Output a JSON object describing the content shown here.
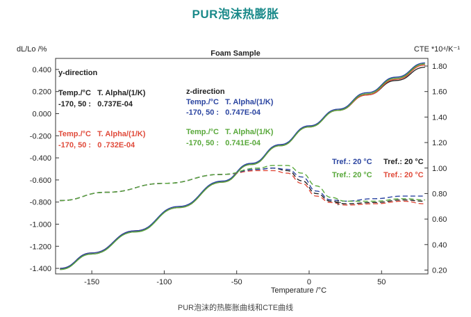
{
  "page": {
    "title": "PUR泡沫热膨胀",
    "caption": "PUR泡沫的热膨胀曲线和CTE曲线"
  },
  "colors": {
    "title": "#1a8a8a",
    "black": "#222222",
    "blue": "#2a44a0",
    "red": "#e04a3a",
    "green": "#58a83a"
  },
  "chart_data": {
    "type": "line",
    "title": "Foam Sample",
    "xlabel": "Temperature /°C",
    "ylabel": "dL/Lo /%",
    "y2label": "CTE *10⁴/K⁻¹",
    "xlim": [
      -175,
      82
    ],
    "ylim": [
      -1.45,
      0.5
    ],
    "y2lim": [
      0.17,
      1.86
    ],
    "xticks": [
      "-150",
      "-100",
      "-50",
      "0",
      "50"
    ],
    "xtick_values": [
      -150,
      -100,
      -50,
      0,
      50
    ],
    "yticks": [
      "0.400",
      "0.200",
      "0.000",
      "-0.200",
      "-0.400",
      "-0.600",
      "-0.800",
      "-1.000",
      "-1.200",
      "-1.400"
    ],
    "ytick_values": [
      0.4,
      0.2,
      0.0,
      -0.2,
      -0.4,
      -0.6,
      -0.8,
      -1.0,
      -1.2,
      -1.4
    ],
    "y2ticks": [
      "1.80",
      "1.60",
      "1.40",
      "1.20",
      "1.00",
      "0.80",
      "0.60",
      "0.40",
      "0.20"
    ],
    "y2tick_values": [
      1.8,
      1.6,
      1.4,
      1.2,
      1.0,
      0.8,
      0.6,
      0.4,
      0.2
    ],
    "grid": false,
    "series": [
      {
        "color": "black",
        "axis": "left",
        "style": "solid",
        "x": [
          -172,
          -150,
          -120,
          -90,
          -60,
          -40,
          -20,
          0,
          20,
          40,
          60,
          80
        ],
        "y": [
          -1.41,
          -1.27,
          -1.07,
          -0.85,
          -0.62,
          -0.46,
          -0.29,
          -0.12,
          0.03,
          0.17,
          0.3,
          0.42
        ]
      },
      {
        "color": "red",
        "axis": "left",
        "style": "solid",
        "x": [
          -172,
          -150,
          -120,
          -90,
          -60,
          -40,
          -20,
          0,
          20,
          40,
          60,
          80
        ],
        "y": [
          -1.4,
          -1.26,
          -1.06,
          -0.85,
          -0.62,
          -0.46,
          -0.29,
          -0.12,
          0.03,
          0.17,
          0.31,
          0.44
        ]
      },
      {
        "color": "blue",
        "axis": "left",
        "style": "solid",
        "x": [
          -172,
          -150,
          -120,
          -90,
          -60,
          -40,
          -20,
          0,
          20,
          40,
          60,
          80
        ],
        "y": [
          -1.4,
          -1.26,
          -1.06,
          -0.84,
          -0.61,
          -0.45,
          -0.28,
          -0.11,
          0.04,
          0.19,
          0.33,
          0.46
        ]
      },
      {
        "color": "green",
        "axis": "left",
        "style": "solid",
        "x": [
          -172,
          -150,
          -120,
          -90,
          -60,
          -40,
          -20,
          0,
          20,
          40,
          60,
          80
        ],
        "y": [
          -1.41,
          -1.27,
          -1.07,
          -0.85,
          -0.62,
          -0.46,
          -0.29,
          -0.12,
          0.03,
          0.18,
          0.32,
          0.45
        ]
      },
      {
        "color": "black",
        "axis": "right",
        "style": "dashed",
        "x": [
          -172,
          -140,
          -100,
          -60,
          -35,
          -25,
          -15,
          -5,
          5,
          15,
          25,
          45,
          65,
          80
        ],
        "y": [
          0.745,
          0.81,
          0.88,
          0.95,
          0.99,
          1.0,
          0.98,
          0.9,
          0.8,
          0.74,
          0.72,
          0.73,
          0.75,
          0.74
        ]
      },
      {
        "color": "red",
        "axis": "right",
        "style": "dashed",
        "x": [
          -172,
          -140,
          -100,
          -60,
          -35,
          -25,
          -15,
          -5,
          5,
          15,
          25,
          45,
          65,
          80
        ],
        "y": [
          0.745,
          0.81,
          0.88,
          0.95,
          0.98,
          0.98,
          0.96,
          0.88,
          0.78,
          0.73,
          0.71,
          0.72,
          0.74,
          0.72
        ]
      },
      {
        "color": "blue",
        "axis": "right",
        "style": "dashed",
        "x": [
          -172,
          -140,
          -100,
          -60,
          -35,
          -25,
          -15,
          -5,
          5,
          15,
          25,
          45,
          65,
          80
        ],
        "y": [
          0.745,
          0.81,
          0.88,
          0.95,
          0.99,
          1.0,
          0.99,
          0.93,
          0.82,
          0.75,
          0.74,
          0.76,
          0.78,
          0.78
        ]
      },
      {
        "color": "green",
        "axis": "right",
        "style": "dashed",
        "x": [
          -172,
          -140,
          -100,
          -60,
          -35,
          -25,
          -15,
          -5,
          5,
          15,
          25,
          45,
          65,
          80
        ],
        "y": [
          0.745,
          0.81,
          0.88,
          0.95,
          1.0,
          1.02,
          1.02,
          0.96,
          0.86,
          0.77,
          0.74,
          0.74,
          0.76,
          0.75
        ]
      }
    ],
    "annotations": [
      {
        "text": "y-direction",
        "color": "black"
      },
      {
        "text": "Temp./°C   T. Alpha/(1/K)",
        "color": "black"
      },
      {
        "text": "-170, 50 :   0.737E-04",
        "color": "black"
      },
      {
        "text": "Temp./°C   T. Alpha/(1/K)",
        "color": "red"
      },
      {
        "text": "-170, 50 :   0 .732E-04",
        "color": "red"
      },
      {
        "text": "z-direction",
        "color": "black"
      },
      {
        "text": "Temp./°C   T. Alpha/(1/K)",
        "color": "blue"
      },
      {
        "text": "-170, 50 :   0.747E-04",
        "color": "blue"
      },
      {
        "text": "Temp./°C   T. Alpha/(1/K)",
        "color": "green"
      },
      {
        "text": "-170, 50 :   0.741E-04",
        "color": "green"
      },
      {
        "text": "Tref.: 20 °C",
        "color": "blue"
      },
      {
        "text": "Tref.: 20 °C",
        "color": "black"
      },
      {
        "text": "Tref.: 20 °C",
        "color": "green"
      },
      {
        "text": "Tref.: 20 °C",
        "color": "red"
      }
    ]
  }
}
